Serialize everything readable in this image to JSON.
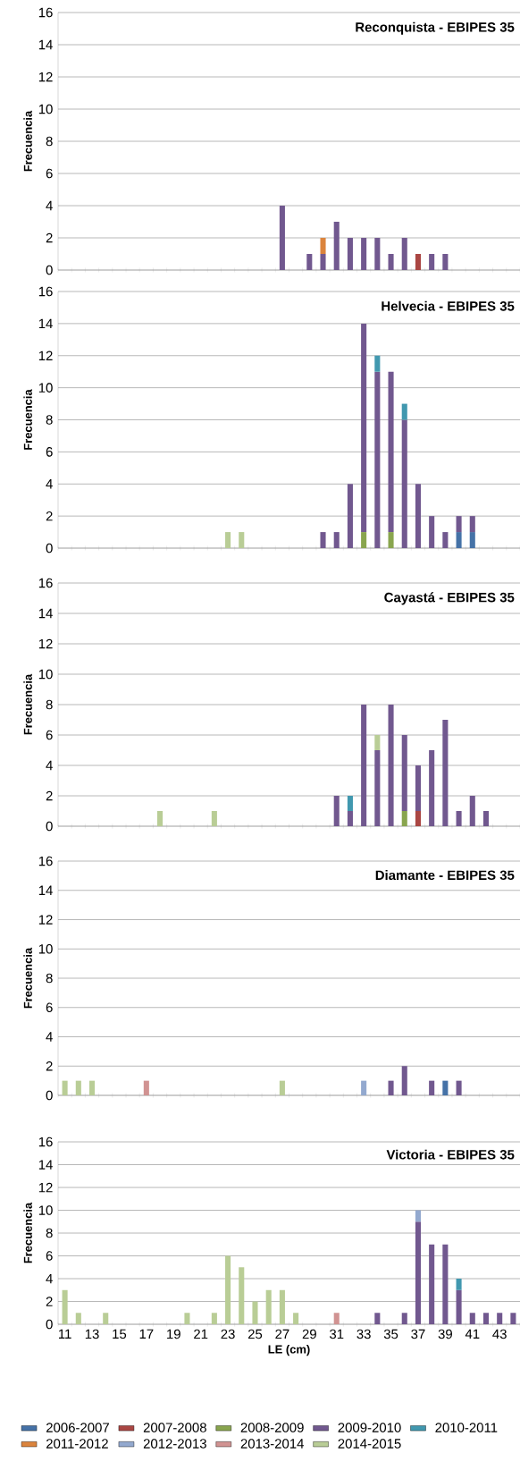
{
  "chart_data": [
    {
      "type": "bar",
      "stacked": true,
      "title": "Reconquista - EBIPES 35",
      "ylabel": "Frecuencia",
      "grid": "y",
      "tick_labels": "y",
      "ylim": [
        0,
        16
      ],
      "yticks": [
        0,
        2,
        4,
        6,
        8,
        10,
        12,
        14,
        16
      ],
      "categories": [
        "11",
        null,
        "13",
        null,
        "15",
        null,
        "17",
        null,
        "19",
        null,
        "21",
        null,
        "23",
        null,
        "25",
        null,
        "27",
        null,
        "29",
        null,
        "31",
        null,
        "33",
        null,
        "35",
        null,
        "37",
        null,
        "39",
        null,
        "41",
        null,
        "43",
        null
      ],
      "series": [
        {
          "color": "#aa4643",
          "values": [
            null,
            null,
            null,
            null,
            null,
            null,
            null,
            null,
            null,
            null,
            null,
            null,
            null,
            null,
            null,
            null,
            null,
            null,
            null,
            null,
            null,
            null,
            null,
            null,
            null,
            null,
            1,
            null,
            null,
            null,
            null,
            null,
            null,
            null
          ]
        },
        {
          "color": "#71588f",
          "values": [
            null,
            null,
            null,
            null,
            null,
            null,
            null,
            null,
            null,
            null,
            null,
            null,
            null,
            null,
            null,
            null,
            4,
            null,
            1,
            1,
            3,
            2,
            2,
            2,
            1,
            2,
            null,
            1,
            1,
            null,
            null,
            null,
            null,
            null
          ]
        },
        {
          "color": "#db843d",
          "values": [
            null,
            null,
            null,
            null,
            null,
            null,
            null,
            null,
            null,
            null,
            null,
            null,
            null,
            null,
            null,
            null,
            null,
            null,
            null,
            1,
            null,
            null,
            null,
            null,
            null,
            null,
            null,
            null,
            null,
            null,
            null,
            null,
            null,
            null
          ]
        }
      ]
    },
    {
      "type": "bar",
      "stacked": true,
      "title": "Helvecia - EBIPES 35",
      "ylabel": "Frecuencia",
      "grid": "y",
      "tick_labels": "y",
      "ylim": [
        0,
        16
      ],
      "yticks": [
        0,
        2,
        4,
        6,
        8,
        10,
        12,
        14,
        16
      ],
      "categories": [
        "11",
        null,
        "13",
        null,
        "15",
        null,
        "17",
        null,
        "19",
        null,
        "21",
        null,
        "23",
        null,
        "25",
        null,
        "27",
        null,
        "29",
        null,
        "31",
        null,
        "33",
        null,
        "35",
        null,
        "37",
        null,
        "39",
        null,
        "41",
        null,
        "43",
        null
      ],
      "series": [
        {
          "color": "#4572a7",
          "values": [
            null,
            null,
            null,
            null,
            null,
            null,
            null,
            null,
            null,
            null,
            null,
            null,
            null,
            null,
            null,
            null,
            null,
            null,
            null,
            null,
            null,
            null,
            null,
            null,
            null,
            null,
            null,
            null,
            null,
            1,
            1,
            null,
            null,
            null
          ]
        },
        {
          "color": "#89a54e",
          "values": [
            null,
            null,
            null,
            null,
            null,
            null,
            null,
            null,
            null,
            null,
            null,
            null,
            null,
            null,
            null,
            null,
            null,
            null,
            null,
            null,
            null,
            null,
            1,
            null,
            1,
            null,
            null,
            null,
            null,
            null,
            null,
            null,
            null,
            null
          ]
        },
        {
          "color": "#71588f",
          "values": [
            null,
            null,
            null,
            null,
            null,
            null,
            null,
            null,
            null,
            null,
            null,
            null,
            null,
            null,
            null,
            null,
            null,
            null,
            null,
            1,
            1,
            4,
            13,
            11,
            10,
            8,
            4,
            2,
            1,
            1,
            1,
            null,
            null,
            null
          ]
        },
        {
          "color": "#4198af",
          "values": [
            null,
            null,
            null,
            null,
            null,
            null,
            null,
            null,
            null,
            null,
            null,
            null,
            null,
            null,
            null,
            null,
            null,
            null,
            null,
            null,
            null,
            null,
            null,
            1,
            null,
            1,
            null,
            null,
            null,
            null,
            null,
            null,
            null,
            null
          ]
        },
        {
          "color": "#b9cd96",
          "values": [
            null,
            null,
            null,
            null,
            null,
            null,
            null,
            null,
            null,
            null,
            null,
            null,
            1,
            1,
            null,
            null,
            null,
            null,
            null,
            null,
            null,
            null,
            null,
            null,
            null,
            null,
            null,
            null,
            null,
            null,
            null,
            null,
            null,
            null
          ]
        }
      ]
    },
    {
      "type": "bar",
      "stacked": true,
      "title": "Cayastá - EBIPES 35",
      "ylabel": "Frecuencia",
      "grid": "y",
      "tick_labels": "y",
      "ylim": [
        0,
        16
      ],
      "yticks": [
        0,
        2,
        4,
        6,
        8,
        10,
        12,
        14,
        16
      ],
      "categories": [
        "11",
        null,
        "13",
        null,
        "15",
        null,
        "17",
        null,
        "19",
        null,
        "21",
        null,
        "23",
        null,
        "25",
        null,
        "27",
        null,
        "29",
        null,
        "31",
        null,
        "33",
        null,
        "35",
        null,
        "37",
        null,
        "39",
        null,
        "41",
        null,
        "43",
        null
      ],
      "series": [
        {
          "color": "#aa4643",
          "values": [
            null,
            null,
            null,
            null,
            null,
            null,
            null,
            null,
            null,
            null,
            null,
            null,
            null,
            null,
            null,
            null,
            null,
            null,
            null,
            null,
            null,
            null,
            null,
            null,
            null,
            null,
            1,
            null,
            null,
            null,
            null,
            null,
            null,
            null
          ]
        },
        {
          "color": "#89a54e",
          "values": [
            null,
            null,
            null,
            null,
            null,
            null,
            null,
            null,
            null,
            null,
            null,
            null,
            null,
            null,
            null,
            null,
            null,
            null,
            null,
            null,
            null,
            null,
            null,
            null,
            null,
            1,
            null,
            null,
            null,
            null,
            null,
            null,
            null,
            null
          ]
        },
        {
          "color": "#71588f",
          "values": [
            null,
            null,
            null,
            null,
            null,
            null,
            null,
            null,
            null,
            null,
            null,
            null,
            null,
            null,
            null,
            null,
            null,
            null,
            null,
            null,
            2,
            1,
            8,
            5,
            8,
            5,
            3,
            5,
            7,
            1,
            2,
            1,
            null,
            null
          ]
        },
        {
          "color": "#4198af",
          "values": [
            null,
            null,
            null,
            null,
            null,
            null,
            null,
            null,
            null,
            null,
            null,
            null,
            null,
            null,
            null,
            null,
            null,
            null,
            null,
            null,
            null,
            1,
            null,
            null,
            null,
            null,
            null,
            null,
            null,
            null,
            null,
            null,
            null,
            null
          ]
        },
        {
          "color": "#b9cd96",
          "values": [
            null,
            null,
            null,
            null,
            null,
            null,
            null,
            1,
            null,
            null,
            null,
            1,
            null,
            null,
            null,
            null,
            null,
            null,
            null,
            null,
            null,
            null,
            null,
            1,
            null,
            null,
            null,
            null,
            null,
            null,
            null,
            null,
            null,
            null
          ]
        }
      ]
    },
    {
      "type": "bar",
      "stacked": true,
      "title": "Diamante - EBIPES 35",
      "ylabel": "Frecuencia",
      "grid": "y",
      "tick_labels": "y",
      "ylim": [
        0,
        16
      ],
      "yticks": [
        0,
        2,
        4,
        6,
        8,
        10,
        12,
        14,
        16
      ],
      "categories": [
        "11",
        null,
        "13",
        null,
        "15",
        null,
        "17",
        null,
        "19",
        null,
        "21",
        null,
        "23",
        null,
        "25",
        null,
        "27",
        null,
        "29",
        null,
        "31",
        null,
        "33",
        null,
        "35",
        null,
        "37",
        null,
        "39",
        null,
        "41",
        null,
        "43",
        null
      ],
      "series": [
        {
          "color": "#4572a7",
          "values": [
            null,
            null,
            null,
            null,
            null,
            null,
            null,
            null,
            null,
            null,
            null,
            null,
            null,
            null,
            null,
            null,
            null,
            null,
            null,
            null,
            null,
            null,
            null,
            null,
            null,
            null,
            null,
            null,
            1,
            null,
            null,
            null,
            null,
            null
          ]
        },
        {
          "color": "#71588f",
          "values": [
            null,
            null,
            null,
            null,
            null,
            null,
            null,
            null,
            null,
            null,
            null,
            null,
            null,
            null,
            null,
            null,
            null,
            null,
            null,
            null,
            null,
            null,
            null,
            null,
            1,
            2,
            null,
            1,
            null,
            1,
            null,
            null,
            null,
            null
          ]
        },
        {
          "color": "#93a9cf",
          "values": [
            null,
            null,
            null,
            null,
            null,
            null,
            null,
            null,
            null,
            null,
            null,
            null,
            null,
            null,
            null,
            null,
            null,
            null,
            null,
            null,
            null,
            null,
            1,
            null,
            null,
            null,
            null,
            null,
            null,
            null,
            null,
            null,
            null,
            null
          ]
        },
        {
          "color": "#d19392",
          "values": [
            null,
            null,
            null,
            null,
            null,
            null,
            1,
            null,
            null,
            null,
            null,
            null,
            null,
            null,
            null,
            null,
            null,
            null,
            null,
            null,
            null,
            null,
            null,
            null,
            null,
            null,
            null,
            null,
            null,
            null,
            null,
            null,
            null,
            null
          ]
        },
        {
          "color": "#b9cd96",
          "values": [
            1,
            1,
            1,
            null,
            null,
            null,
            null,
            null,
            null,
            null,
            null,
            null,
            null,
            null,
            null,
            null,
            1,
            null,
            null,
            null,
            null,
            null,
            null,
            null,
            null,
            null,
            null,
            null,
            null,
            null,
            null,
            null,
            null,
            null
          ]
        }
      ]
    },
    {
      "type": "bar",
      "stacked": true,
      "title": "Victoria - EBIPES 35",
      "ylabel": "Frecuencia",
      "xlabel": "LE (cm)",
      "grid": "y",
      "legend": "bottom",
      "ylim": [
        0,
        16
      ],
      "yticks": [
        0,
        2,
        4,
        6,
        8,
        10,
        12,
        14,
        16
      ],
      "categories": [
        "11",
        null,
        "13",
        null,
        "15",
        null,
        "17",
        null,
        "19",
        null,
        "21",
        null,
        "23",
        null,
        "25",
        null,
        "27",
        null,
        "29",
        null,
        "31",
        null,
        "33",
        null,
        "35",
        null,
        "37",
        null,
        "39",
        null,
        "41",
        null,
        "43",
        null
      ],
      "series": [
        {
          "name": "2006-2007",
          "color": "#4572a7",
          "values": [
            null,
            null,
            null,
            null,
            null,
            null,
            null,
            null,
            null,
            null,
            null,
            null,
            null,
            null,
            null,
            null,
            null,
            null,
            null,
            null,
            null,
            null,
            null,
            null,
            null,
            null,
            null,
            null,
            null,
            null,
            null,
            null,
            null,
            null
          ]
        },
        {
          "name": "2007-2008",
          "color": "#aa4643",
          "values": [
            null,
            null,
            null,
            null,
            null,
            null,
            null,
            null,
            null,
            null,
            null,
            null,
            null,
            null,
            null,
            null,
            null,
            null,
            null,
            null,
            null,
            null,
            null,
            null,
            null,
            null,
            null,
            null,
            null,
            null,
            null,
            null,
            null,
            null
          ]
        },
        {
          "name": "2008-2009",
          "color": "#89a54e",
          "values": [
            null,
            null,
            null,
            null,
            null,
            null,
            null,
            null,
            null,
            null,
            null,
            null,
            null,
            null,
            null,
            null,
            null,
            null,
            null,
            null,
            null,
            null,
            null,
            null,
            null,
            null,
            null,
            null,
            null,
            null,
            null,
            null,
            null,
            null
          ]
        },
        {
          "name": "2009-2010",
          "color": "#71588f",
          "values": [
            null,
            null,
            null,
            null,
            null,
            null,
            null,
            null,
            null,
            null,
            null,
            null,
            null,
            null,
            null,
            null,
            null,
            null,
            null,
            null,
            null,
            null,
            null,
            1,
            null,
            1,
            9,
            7,
            7,
            3,
            1,
            1,
            1,
            1
          ]
        },
        {
          "name": "2010-2011",
          "color": "#4198af",
          "values": [
            null,
            null,
            null,
            null,
            null,
            null,
            null,
            null,
            null,
            null,
            null,
            null,
            null,
            null,
            null,
            null,
            null,
            null,
            null,
            null,
            null,
            null,
            null,
            null,
            null,
            null,
            null,
            null,
            null,
            1,
            null,
            null,
            null,
            null
          ]
        },
        {
          "name": "2011-2012",
          "color": "#db843d",
          "values": [
            null,
            null,
            null,
            null,
            null,
            null,
            null,
            null,
            null,
            null,
            null,
            null,
            null,
            null,
            null,
            null,
            null,
            null,
            null,
            null,
            null,
            null,
            null,
            null,
            null,
            null,
            null,
            null,
            null,
            null,
            null,
            null,
            null,
            null
          ]
        },
        {
          "name": "2012-2013",
          "color": "#93a9cf",
          "values": [
            null,
            null,
            null,
            null,
            null,
            null,
            null,
            null,
            null,
            null,
            null,
            null,
            null,
            null,
            null,
            null,
            null,
            null,
            null,
            null,
            null,
            null,
            null,
            null,
            null,
            null,
            1,
            null,
            null,
            null,
            null,
            null,
            null,
            null
          ]
        },
        {
          "name": "2013-2014",
          "color": "#d19392",
          "values": [
            null,
            null,
            null,
            null,
            null,
            null,
            null,
            null,
            null,
            null,
            null,
            null,
            null,
            null,
            null,
            null,
            null,
            null,
            null,
            null,
            1,
            null,
            null,
            null,
            null,
            null,
            null,
            null,
            null,
            null,
            null,
            null,
            null,
            null
          ]
        },
        {
          "name": "2014-2015",
          "color": "#b9cd96",
          "values": [
            3,
            1,
            null,
            1,
            null,
            null,
            null,
            null,
            null,
            1,
            null,
            1,
            6,
            5,
            2,
            3,
            3,
            1,
            null,
            null,
            null,
            null,
            null,
            null,
            null,
            null,
            null,
            null,
            null,
            null,
            null,
            null,
            null,
            null
          ]
        }
      ]
    }
  ]
}
